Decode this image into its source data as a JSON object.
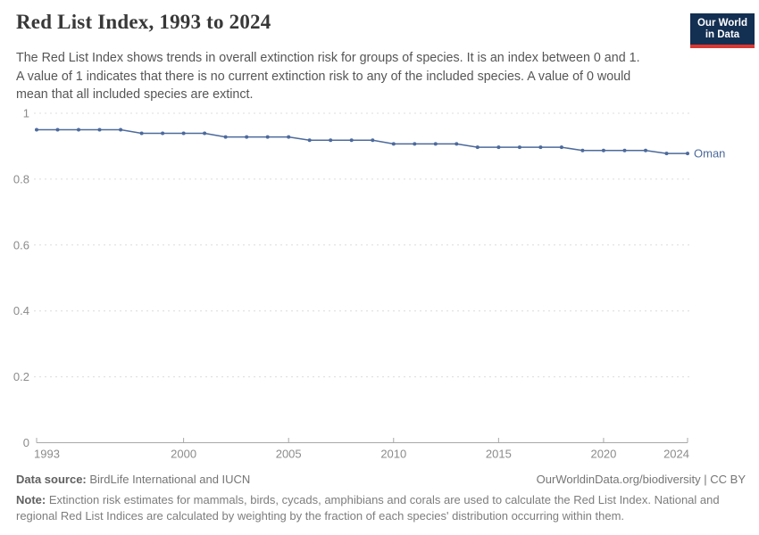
{
  "header": {
    "title": "Red List Index, 1993 to 2024",
    "subtitle_lines": [
      "The Red List Index shows trends in overall extinction risk for groups of species. It is an index between 0 and 1.",
      "A value of 1 indicates that there is no current extinction risk to any of the included species. A value of 0 would",
      "mean that all included species are extinct."
    ],
    "logo": {
      "line1": "Our World",
      "line2": "in Data",
      "bg_color": "#132F52",
      "accent_color": "#D93832"
    }
  },
  "chart_data": {
    "type": "line",
    "title": "Red List Index, 1993 to 2024",
    "xlabel": "",
    "ylabel": "",
    "xlim": [
      1993,
      2024
    ],
    "ylim": [
      0,
      1
    ],
    "xticks": [
      1993,
      2000,
      2005,
      2010,
      2015,
      2020,
      2024
    ],
    "yticks": [
      0,
      0.2,
      0.4,
      0.6,
      0.8,
      1
    ],
    "grid": "horizontal-dashed",
    "legend_position": "end-of-line-label",
    "x": [
      1993,
      1994,
      1995,
      1996,
      1997,
      1998,
      1999,
      2000,
      2001,
      2002,
      2003,
      2004,
      2005,
      2006,
      2007,
      2008,
      2009,
      2010,
      2011,
      2012,
      2013,
      2014,
      2015,
      2016,
      2017,
      2018,
      2019,
      2020,
      2021,
      2022,
      2023,
      2024
    ],
    "series": [
      {
        "name": "Oman",
        "color": "#4C6A9C",
        "values": [
          0.95,
          0.95,
          0.95,
          0.95,
          0.95,
          0.939,
          0.939,
          0.939,
          0.939,
          0.928,
          0.928,
          0.928,
          0.928,
          0.918,
          0.918,
          0.918,
          0.918,
          0.907,
          0.907,
          0.907,
          0.907,
          0.897,
          0.897,
          0.897,
          0.897,
          0.897,
          0.887,
          0.887,
          0.887,
          0.887,
          0.878,
          0.878
        ]
      }
    ]
  },
  "footer": {
    "datasource_label": "Data source:",
    "datasource_text": "BirdLife International and IUCN",
    "link_text": "OurWorldinData.org/biodiversity | CC BY",
    "note_label": "Note:",
    "note_lines": [
      "Extinction risk estimates for mammals, birds, cycads, amphibians and corals are used to calculate the Red List Index. National and",
      "regional Red List Indices are calculated by weighting by the fraction of each species' distribution occurring within them."
    ]
  }
}
